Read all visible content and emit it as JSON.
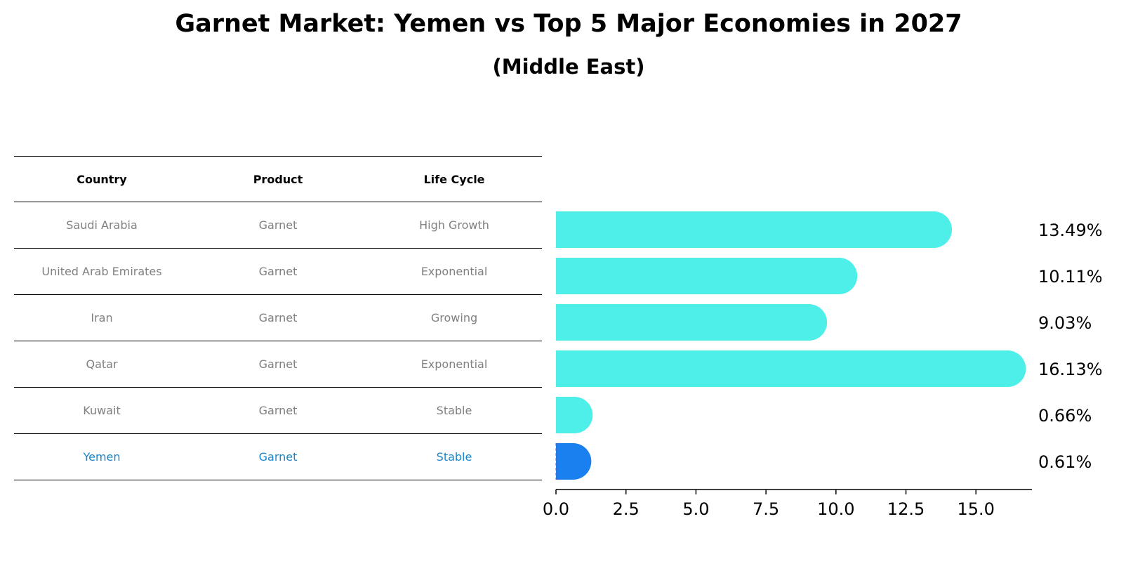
{
  "title": "Garnet Market: Yemen vs Top 5 Major Economies in 2027",
  "subtitle": "(Middle East)",
  "table": {
    "headers": [
      "Country",
      "Product",
      "Life Cycle"
    ],
    "rows": [
      [
        "Saudi Arabia",
        "Garnet",
        "High Growth"
      ],
      [
        "United Arab Emirates",
        "Garnet",
        "Exponential"
      ],
      [
        "Iran",
        "Garnet",
        "Growing"
      ],
      [
        "Qatar",
        "Garnet",
        "Exponential"
      ],
      [
        "Kuwait",
        "Garnet",
        "Stable"
      ],
      [
        "Yemen",
        "Garnet",
        "Stable"
      ]
    ]
  },
  "colors": {
    "bar": "#4eeee9",
    "highlight": "#1a80f0",
    "highlight_text": "#1a85c8"
  },
  "chart_data": {
    "type": "bar",
    "orientation": "horizontal",
    "categories": [
      "Saudi Arabia",
      "United Arab Emirates",
      "Iran",
      "Qatar",
      "Kuwait",
      "Yemen"
    ],
    "values": [
      13.49,
      10.11,
      9.03,
      16.13,
      0.66,
      0.61
    ],
    "value_labels": [
      "13.49%",
      "10.11%",
      "9.03%",
      "16.13%",
      "0.66%",
      "0.61%"
    ],
    "highlight": "Yemen",
    "xlim": [
      0,
      17
    ],
    "xticks": [
      0.0,
      2.5,
      5.0,
      7.5,
      10.0,
      12.5,
      15.0
    ],
    "xtick_labels": [
      "0.0",
      "2.5",
      "5.0",
      "7.5",
      "10.0",
      "12.5",
      "15.0"
    ],
    "xlabel": "",
    "ylabel": "",
    "grid": false
  }
}
